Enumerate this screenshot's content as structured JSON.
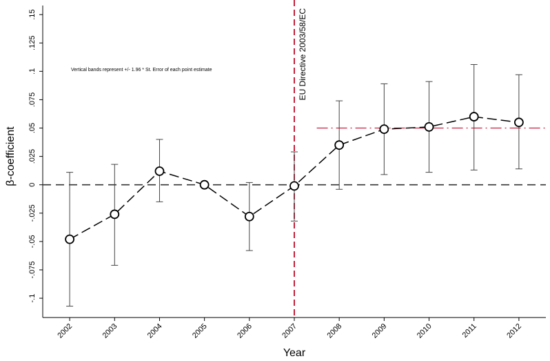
{
  "chart_data": {
    "type": "line",
    "xlabel": "Year",
    "ylabel": "β-coefficient",
    "x": [
      2002,
      2003,
      2004,
      2005,
      2006,
      2007,
      2008,
      2009,
      2010,
      2011,
      2012
    ],
    "x_tick_labels": [
      "2002",
      "2003",
      "2004",
      "2005",
      "2006",
      "2007",
      "2008",
      "2009",
      "2010",
      "2011",
      "2012"
    ],
    "y_ticks": [
      -0.1,
      -0.075,
      -0.05,
      -0.025,
      0,
      0.025,
      0.05,
      0.075,
      0.1,
      0.125,
      0.15
    ],
    "y_tick_labels": [
      "-.1",
      "-.075",
      "-.05",
      "-.025",
      "0",
      ".025",
      ".05",
      ".075",
      ".1",
      ".125",
      ".15"
    ],
    "ylim": [
      -0.117,
      0.158
    ],
    "xlim": [
      2001.4,
      2012.6
    ],
    "series": [
      {
        "values": [
          -0.048,
          -0.026,
          0.012,
          0.0,
          -0.028,
          -0.001,
          0.035,
          0.049,
          0.051,
          0.06,
          0.055
        ],
        "ci_low": [
          -0.107,
          -0.071,
          -0.015,
          null,
          -0.058,
          -0.032,
          -0.004,
          0.009,
          0.011,
          0.013,
          0.014
        ],
        "ci_high": [
          0.011,
          0.018,
          0.04,
          null,
          0.002,
          0.029,
          0.074,
          0.089,
          0.091,
          0.106,
          0.097
        ]
      }
    ],
    "reference_lines": {
      "zero_y": 0,
      "policy_x": 2007,
      "policy_label": "EU Directive 2003/58/EC",
      "post_mean_y": 0.05,
      "post_mean_x_start": 2007.5,
      "post_mean_x_end": 2012.6
    },
    "annotation": "Vertical bands represent +/- 1.96 * St. Error of each point estimate",
    "colors": {
      "series": "#000000",
      "policy_line": "#c41e3a",
      "post_mean": "#c41e3a",
      "zero_line": "#333333",
      "ci": "#444444"
    },
    "grid": false
  }
}
